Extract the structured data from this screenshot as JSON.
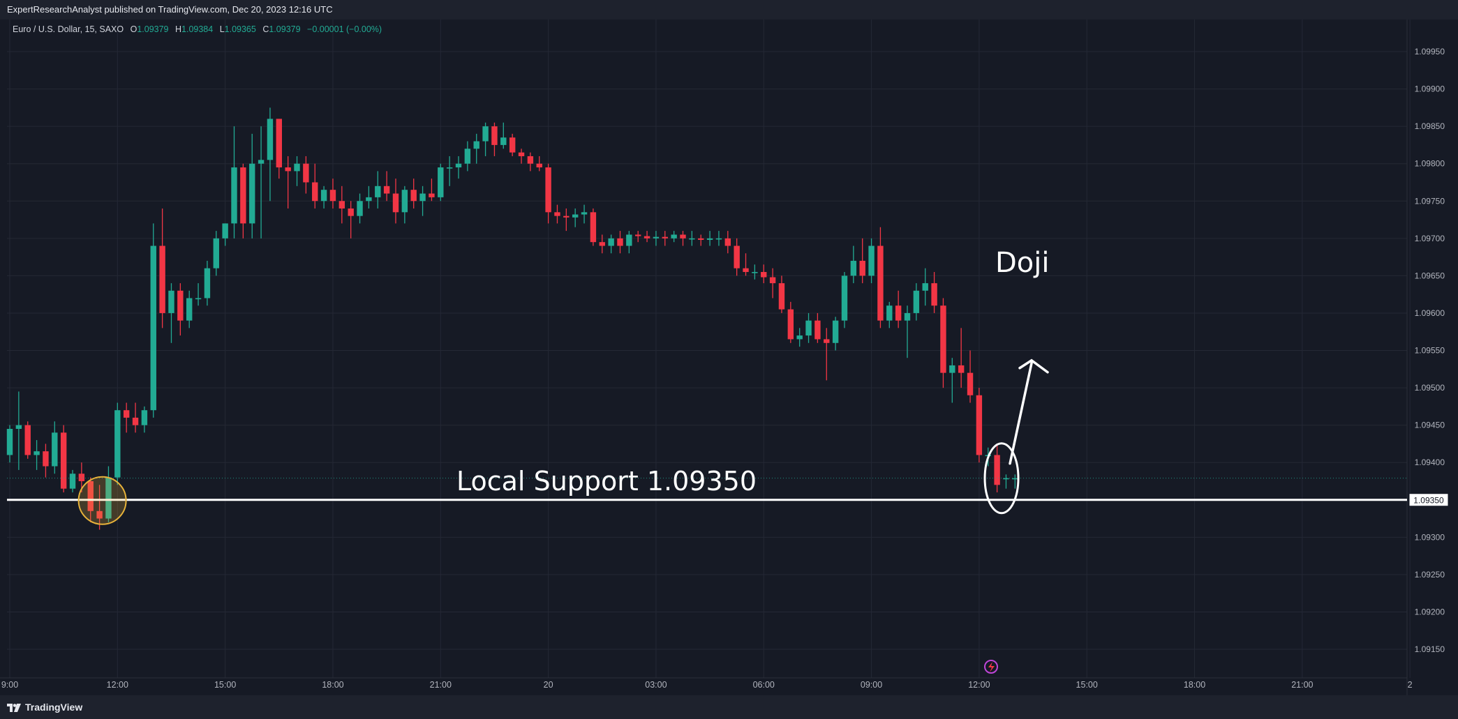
{
  "header": {
    "published_text": "ExpertResearchAnalyst published on TradingView.com, Dec 20, 2023 12:16 UTC"
  },
  "legend": {
    "symbol": "Euro / U.S. Dollar, 15, SAXO",
    "o_label": "O",
    "o_value": "1.09379",
    "h_label": "H",
    "h_value": "1.09384",
    "l_label": "L",
    "l_value": "1.09365",
    "c_label": "C",
    "c_value": "1.09379",
    "change": "−0.00001 (−0.00%)"
  },
  "footer": {
    "brand": "TradingView",
    "logo_icon": "tradingview-logo-icon"
  },
  "colors": {
    "up": "#22ab94",
    "down": "#f23645",
    "background": "#161a25",
    "grid": "#242835",
    "support_line": "#ffffff",
    "highlight_circle": "#e8b33a"
  },
  "chart_data": {
    "type": "candlestick",
    "title": "Euro / U.S. Dollar, 15, SAXO",
    "xlabel": "",
    "ylabel": "",
    "ylim": [
      1.09125,
      1.09985
    ],
    "y_ticks": [
      "1.09150",
      "1.09200",
      "1.09250",
      "1.09300",
      "1.09350",
      "1.09400",
      "1.09450",
      "1.09500",
      "1.09550",
      "1.09600",
      "1.09650",
      "1.09700",
      "1.09750",
      "1.09800",
      "1.09850",
      "1.09900",
      "1.09950"
    ],
    "x_ticks": [
      {
        "label": "9:00",
        "bar": 0
      },
      {
        "label": "12:00",
        "bar": 12
      },
      {
        "label": "15:00",
        "bar": 24
      },
      {
        "label": "18:00",
        "bar": 36
      },
      {
        "label": "21:00",
        "bar": 48
      },
      {
        "label": "20",
        "bar": 60
      },
      {
        "label": "03:00",
        "bar": 72
      },
      {
        "label": "06:00",
        "bar": 84
      },
      {
        "label": "09:00",
        "bar": 96
      },
      {
        "label": "12:00",
        "bar": 108
      },
      {
        "label": "15:00",
        "bar": 120
      },
      {
        "label": "18:00",
        "bar": 132
      },
      {
        "label": "21:00",
        "bar": 144
      },
      {
        "label": "2",
        "bar": 156
      }
    ],
    "grid": true,
    "candles": [
      [
        1.0941,
        1.0945,
        1.094,
        1.09445
      ],
      [
        1.09445,
        1.09495,
        1.0939,
        1.0945
      ],
      [
        1.0945,
        1.09455,
        1.09405,
        1.0941
      ],
      [
        1.0941,
        1.0943,
        1.0939,
        1.09415
      ],
      [
        1.09415,
        1.09425,
        1.0938,
        1.09395
      ],
      [
        1.09395,
        1.09455,
        1.09385,
        1.0944
      ],
      [
        1.0944,
        1.0945,
        1.0936,
        1.09365
      ],
      [
        1.09365,
        1.0939,
        1.0936,
        1.09385
      ],
      [
        1.09385,
        1.094,
        1.0936,
        1.09375
      ],
      [
        1.09375,
        1.0938,
        1.0932,
        1.09335
      ],
      [
        1.09335,
        1.0937,
        1.0931,
        1.09325
      ],
      [
        1.09325,
        1.09395,
        1.0932,
        1.0938
      ],
      [
        1.0938,
        1.0948,
        1.0937,
        1.0947
      ],
      [
        1.0947,
        1.0948,
        1.0944,
        1.0946
      ],
      [
        1.0946,
        1.0948,
        1.0944,
        1.0945
      ],
      [
        1.0945,
        1.09475,
        1.0944,
        1.0947
      ],
      [
        1.0947,
        1.0972,
        1.0946,
        1.0969
      ],
      [
        1.0969,
        1.0974,
        1.0958,
        1.096
      ],
      [
        1.096,
        1.0964,
        1.0956,
        1.0963
      ],
      [
        1.0963,
        1.0964,
        1.0957,
        1.0959
      ],
      [
        1.0959,
        1.0963,
        1.0958,
        1.0962
      ],
      [
        1.0962,
        1.0964,
        1.0961,
        1.0962
      ],
      [
        1.0962,
        1.0967,
        1.0961,
        1.0966
      ],
      [
        1.0966,
        1.0971,
        1.0965,
        1.097
      ],
      [
        1.097,
        1.0972,
        1.0969,
        1.0972
      ],
      [
        1.0972,
        1.0985,
        1.097,
        1.09795
      ],
      [
        1.09795,
        1.098,
        1.097,
        1.0972
      ],
      [
        1.0972,
        1.0984,
        1.097,
        1.098
      ],
      [
        1.098,
        1.0985,
        1.097,
        1.09805
      ],
      [
        1.09805,
        1.09875,
        1.0975,
        1.0986
      ],
      [
        1.0986,
        1.0986,
        1.0978,
        1.09795
      ],
      [
        1.09795,
        1.0981,
        1.0974,
        1.0979
      ],
      [
        1.0979,
        1.0981,
        1.0977,
        1.098
      ],
      [
        1.098,
        1.0981,
        1.0976,
        1.09775
      ],
      [
        1.09775,
        1.098,
        1.0974,
        1.0975
      ],
      [
        1.0975,
        1.0977,
        1.0974,
        1.09765
      ],
      [
        1.09765,
        1.0978,
        1.0974,
        1.0975
      ],
      [
        1.0975,
        1.0977,
        1.0972,
        1.0974
      ],
      [
        1.0974,
        1.0975,
        1.097,
        1.0973
      ],
      [
        1.0973,
        1.0976,
        1.0972,
        1.0975
      ],
      [
        1.0975,
        1.0977,
        1.0974,
        1.09755
      ],
      [
        1.09755,
        1.0979,
        1.0974,
        1.0977
      ],
      [
        1.0977,
        1.0979,
        1.0975,
        1.0976
      ],
      [
        1.0976,
        1.0978,
        1.0972,
        1.09735
      ],
      [
        1.09735,
        1.0977,
        1.0972,
        1.09765
      ],
      [
        1.09765,
        1.0978,
        1.0974,
        1.0975
      ],
      [
        1.0975,
        1.0977,
        1.0973,
        1.0976
      ],
      [
        1.0976,
        1.0978,
        1.0975,
        1.09755
      ],
      [
        1.09755,
        1.098,
        1.0975,
        1.09795
      ],
      [
        1.09795,
        1.0981,
        1.0977,
        1.09795
      ],
      [
        1.09795,
        1.0981,
        1.0978,
        1.098
      ],
      [
        1.098,
        1.0983,
        1.0979,
        1.0982
      ],
      [
        1.0982,
        1.0984,
        1.098,
        1.0983
      ],
      [
        1.0983,
        1.09855,
        1.0981,
        1.0985
      ],
      [
        1.0985,
        1.09855,
        1.0981,
        1.09825
      ],
      [
        1.09825,
        1.09855,
        1.0982,
        1.09835
      ],
      [
        1.09835,
        1.0984,
        1.0981,
        1.09815
      ],
      [
        1.09815,
        1.0982,
        1.098,
        1.0981
      ],
      [
        1.0981,
        1.09815,
        1.0979,
        1.098
      ],
      [
        1.098,
        1.0981,
        1.0979,
        1.09795
      ],
      [
        1.09795,
        1.098,
        1.0972,
        1.09735
      ],
      [
        1.09735,
        1.09745,
        1.0972,
        1.0973
      ],
      [
        1.0973,
        1.0974,
        1.0971,
        1.09728
      ],
      [
        1.09728,
        1.0974,
        1.09715,
        1.09732
      ],
      [
        1.09732,
        1.09745,
        1.0972,
        1.09735
      ],
      [
        1.09735,
        1.0974,
        1.0969,
        1.09695
      ],
      [
        1.09695,
        1.09705,
        1.0968,
        1.0969
      ],
      [
        1.0969,
        1.09705,
        1.0968,
        1.097
      ],
      [
        1.097,
        1.0971,
        1.0968,
        1.0969
      ],
      [
        1.0969,
        1.0971,
        1.0968,
        1.09705
      ],
      [
        1.09705,
        1.0971,
        1.09695,
        1.09703
      ],
      [
        1.09703,
        1.0971,
        1.09695,
        1.097
      ],
      [
        1.097,
        1.0971,
        1.0969,
        1.09702
      ],
      [
        1.09702,
        1.0971,
        1.0969,
        1.097
      ],
      [
        1.097,
        1.0971,
        1.09695,
        1.09705
      ],
      [
        1.09705,
        1.0971,
        1.0969,
        1.097
      ],
      [
        1.097,
        1.0971,
        1.0969,
        1.097
      ],
      [
        1.097,
        1.09705,
        1.0969,
        1.09698
      ],
      [
        1.09698,
        1.0971,
        1.0969,
        1.097
      ],
      [
        1.097,
        1.0971,
        1.0969,
        1.097
      ],
      [
        1.097,
        1.0971,
        1.0968,
        1.0969
      ],
      [
        1.0969,
        1.097,
        1.0965,
        1.0966
      ],
      [
        1.0966,
        1.0968,
        1.0965,
        1.09655
      ],
      [
        1.09655,
        1.09665,
        1.09645,
        1.09655
      ],
      [
        1.09655,
        1.09665,
        1.0964,
        1.09648
      ],
      [
        1.09648,
        1.0966,
        1.0962,
        1.0964
      ],
      [
        1.0964,
        1.0965,
        1.096,
        1.09605
      ],
      [
        1.09605,
        1.09615,
        1.0956,
        1.09565
      ],
      [
        1.09565,
        1.0958,
        1.09555,
        1.0957
      ],
      [
        1.0957,
        1.096,
        1.0956,
        1.0959
      ],
      [
        1.0959,
        1.096,
        1.0956,
        1.09565
      ],
      [
        1.09565,
        1.0958,
        1.0951,
        1.0956
      ],
      [
        1.0956,
        1.09595,
        1.0955,
        1.0959
      ],
      [
        1.0959,
        1.09655,
        1.0958,
        1.0965
      ],
      [
        1.0965,
        1.0969,
        1.0964,
        1.0967
      ],
      [
        1.0967,
        1.097,
        1.0964,
        1.0965
      ],
      [
        1.0965,
        1.097,
        1.0964,
        1.0969
      ],
      [
        1.0969,
        1.09715,
        1.0958,
        1.0959
      ],
      [
        1.0959,
        1.09615,
        1.0958,
        1.0961
      ],
      [
        1.0961,
        1.0963,
        1.0958,
        1.0959
      ],
      [
        1.0959,
        1.0961,
        1.0954,
        1.096
      ],
      [
        1.096,
        1.0964,
        1.0959,
        1.0963
      ],
      [
        1.0963,
        1.0966,
        1.0961,
        1.0964
      ],
      [
        1.0964,
        1.09655,
        1.096,
        1.0961
      ],
      [
        1.0961,
        1.0962,
        1.095,
        1.0952
      ],
      [
        1.0952,
        1.0954,
        1.0948,
        1.0953
      ],
      [
        1.0953,
        1.0958,
        1.095,
        1.0952
      ],
      [
        1.0952,
        1.0955,
        1.0948,
        1.0949
      ],
      [
        1.0949,
        1.095,
        1.094,
        1.0941
      ],
      [
        1.0941,
        1.0942,
        1.09395,
        1.0941
      ],
      [
        1.0941,
        1.09425,
        1.0936,
        1.0937
      ],
      [
        1.09379,
        1.09384,
        1.09365,
        1.09379
      ],
      [
        1.09379,
        1.09384,
        1.09365,
        1.09379
      ]
    ],
    "support": {
      "value": 1.0935,
      "label": "Local Support 1.09350",
      "price_tag": "1.09350"
    },
    "annotations": {
      "doji_text": "Doji",
      "doji_ellipse_bar": 110.5,
      "highlight_circle_bar": 10,
      "arrow": "up-right"
    }
  }
}
